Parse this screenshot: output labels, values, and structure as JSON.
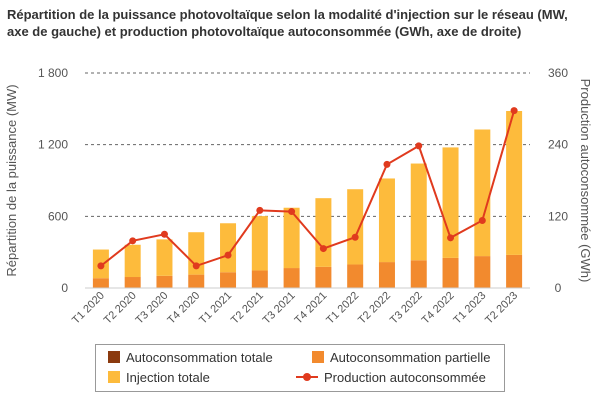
{
  "chart_data": {
    "type": "bar",
    "title": "Répartition de la puissance photovoltaïque selon la modalité d'injection sur le réseau (MW, axe de gauche) et production photovoltaïque autoconsommée (GWh, axe de droite)",
    "ylabel": "Répartition de la puissance (MW)",
    "y2label": "Production autoconsommée (GWh)",
    "ylim": [
      0,
      1800
    ],
    "y2lim": [
      0,
      360
    ],
    "yticks": [
      0,
      600,
      1200,
      1800
    ],
    "ytick_labels": [
      "0",
      "600",
      "1 200",
      "1 800"
    ],
    "y2ticks": [
      0,
      120,
      240,
      360
    ],
    "y2tick_labels": [
      "0",
      "120",
      "240",
      "360"
    ],
    "categories": [
      "T1 2020",
      "T2 2020",
      "T3 2020",
      "T4 2020",
      "T1 2021",
      "T2 2021",
      "T3 2021",
      "T4 2021",
      "T1 2022",
      "T2 2022",
      "T3 2022",
      "T4 2022",
      "T1 2023",
      "T2 2023"
    ],
    "grid": true,
    "legend_position": "bottom",
    "series": [
      {
        "name": "Autoconsommation totale",
        "kind": "bar-stacked",
        "color": "#8b3a0f",
        "values": [
          2,
          2,
          2,
          2,
          2,
          2,
          2,
          2,
          2,
          2,
          2,
          2,
          2,
          2
        ]
      },
      {
        "name": "Autoconsommation partielle",
        "kind": "bar-stacked",
        "color": "#f28a2e",
        "values": [
          80,
          90,
          100,
          110,
          130,
          145,
          165,
          175,
          195,
          215,
          230,
          250,
          265,
          275
        ]
      },
      {
        "name": "Injection totale",
        "kind": "bar-stacked",
        "color": "#fdbb3c",
        "values": [
          240,
          270,
          305,
          355,
          410,
          455,
          505,
          575,
          630,
          700,
          810,
          925,
          1060,
          1205
        ]
      },
      {
        "name": "Production autoconsommée",
        "kind": "line",
        "axis": "right",
        "color": "#e03a1e",
        "values": [
          37,
          79,
          90,
          37,
          55,
          130,
          128,
          66,
          85,
          207,
          238,
          84,
          113,
          297
        ]
      }
    ]
  }
}
